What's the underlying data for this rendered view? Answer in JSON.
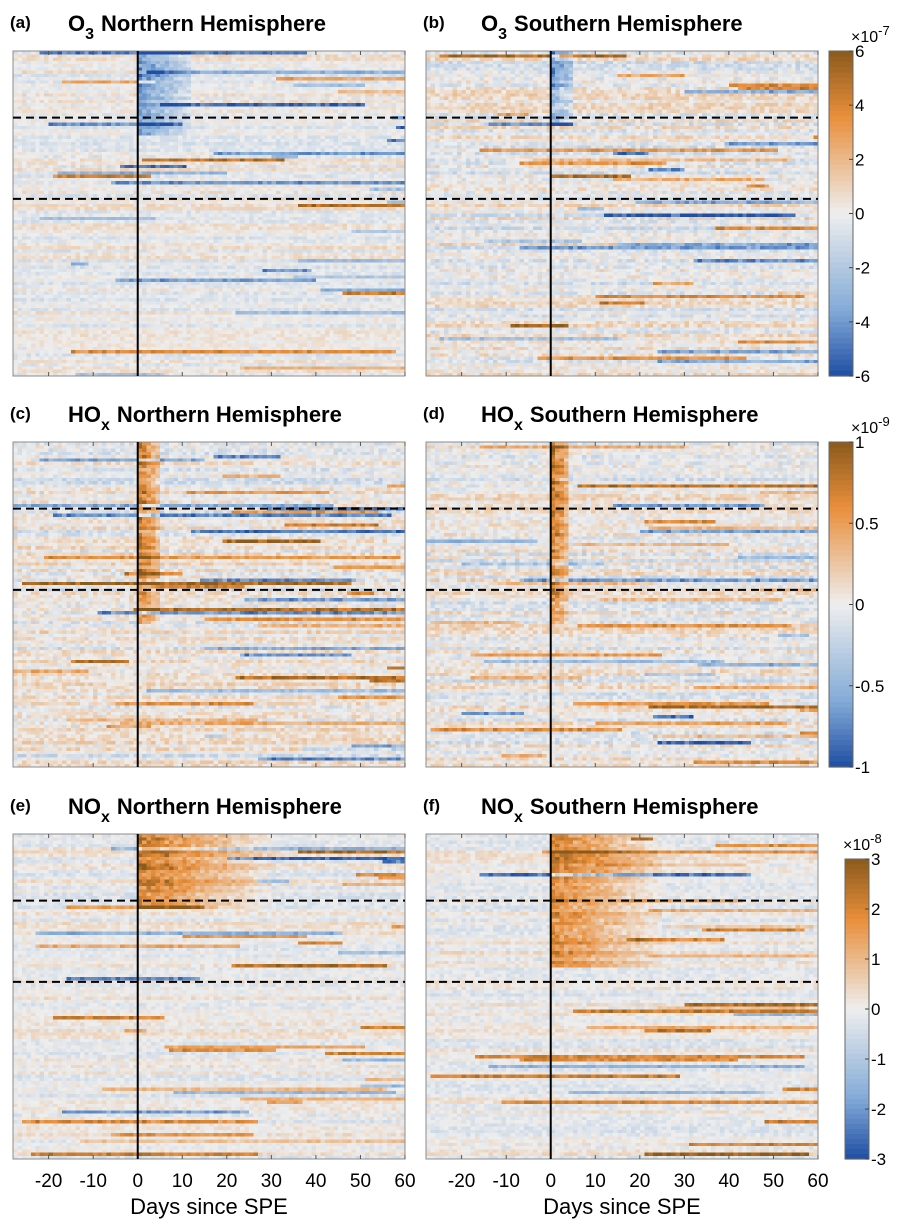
{
  "chart_data": [
    {
      "type": "heatmap",
      "panel_label": "(a)",
      "species": "O",
      "species_sub": "3",
      "title_rest": "Northern Hemisphere",
      "xlabel": "",
      "xlim": [
        -28,
        60
      ],
      "xticks": [],
      "event_day": 0,
      "dashed_row_fractions": [
        0.205,
        0.455
      ],
      "rows": 100,
      "columns": 88,
      "colorbar": {
        "ticks": [
          "6",
          "4",
          "2",
          "0",
          "-2",
          "-4",
          "-6"
        ],
        "exponent_base": "×10",
        "exponent_power": "-7",
        "range": [
          -6,
          6
        ]
      },
      "pattern": {
        "seed": 11,
        "base_amp": 0.12,
        "bright_lines": 0.4,
        "neg_bias": 0.55,
        "post_event_boost": {
          "sign": -1,
          "rows": [
            0,
            0.25
          ],
          "days": 12,
          "amp": 0.9
        }
      }
    },
    {
      "type": "heatmap",
      "panel_label": "(b)",
      "species": "O",
      "species_sub": "3",
      "title_rest": "Southern Hemisphere",
      "xlabel": "",
      "xlim": [
        -28,
        60
      ],
      "xticks": [],
      "event_day": 0,
      "dashed_row_fractions": [
        0.205,
        0.455
      ],
      "rows": 100,
      "columns": 88,
      "colorbar": {
        "ticks": [
          "6",
          "4",
          "2",
          "0",
          "-2",
          "-4",
          "-6"
        ],
        "exponent_base": "×10",
        "exponent_power": "-7",
        "range": [
          -6,
          6
        ]
      },
      "pattern": {
        "seed": 23,
        "base_amp": 0.18,
        "bright_lines": 0.3,
        "neg_bias": 0.5,
        "post_event_boost": {
          "sign": -1,
          "rows": [
            0,
            0.22
          ],
          "days": 5,
          "amp": 0.8
        }
      }
    },
    {
      "type": "heatmap",
      "panel_label": "(c)",
      "species": "HO",
      "species_sub": "x",
      "title_rest": "Northern Hemisphere",
      "xlabel": "",
      "xlim": [
        -28,
        60
      ],
      "xticks": [],
      "event_day": 0,
      "dashed_row_fractions": [
        0.205,
        0.455
      ],
      "rows": 100,
      "columns": 88,
      "colorbar": {
        "ticks": [
          "1",
          "0.5",
          "0",
          "-0.5",
          "-1"
        ],
        "exponent_base": "×10",
        "exponent_power": "-9",
        "range": [
          -1,
          1
        ]
      },
      "pattern": {
        "seed": 37,
        "base_amp": 0.18,
        "bright_lines": 0.35,
        "neg_bias": 0.3,
        "post_event_boost": {
          "sign": 1,
          "rows": [
            0,
            0.55
          ],
          "days": 5,
          "amp": 1.0
        }
      }
    },
    {
      "type": "heatmap",
      "panel_label": "(d)",
      "species": "HO",
      "species_sub": "x",
      "title_rest": "Southern Hemisphere",
      "xlabel": "",
      "xlim": [
        -28,
        60
      ],
      "xticks": [],
      "event_day": 0,
      "dashed_row_fractions": [
        0.205,
        0.455
      ],
      "rows": 100,
      "columns": 88,
      "colorbar": {
        "ticks": [
          "1",
          "0.5",
          "0",
          "-0.5",
          "-1"
        ],
        "exponent_base": "×10",
        "exponent_power": "-9",
        "range": [
          -1,
          1
        ]
      },
      "pattern": {
        "seed": 51,
        "base_amp": 0.18,
        "bright_lines": 0.35,
        "neg_bias": 0.3,
        "post_event_boost": {
          "sign": 1,
          "rows": [
            0,
            0.55
          ],
          "days": 4,
          "amp": 1.0
        }
      }
    },
    {
      "type": "heatmap",
      "panel_label": "(e)",
      "species": "NO",
      "species_sub": "x",
      "title_rest": "Northern Hemisphere",
      "xlabel": "Days since SPE",
      "xlim": [
        -28,
        60
      ],
      "xticks": [
        -20,
        -10,
        0,
        10,
        20,
        30,
        40,
        50,
        60
      ],
      "event_day": 0,
      "dashed_row_fractions": [
        0.205,
        0.455
      ],
      "rows": 100,
      "columns": 88,
      "colorbar": {
        "ticks": [
          "3",
          "2",
          "1",
          "0",
          "-1",
          "-2",
          "-3"
        ],
        "exponent_base": "×10",
        "exponent_power": "-8",
        "range": [
          -3,
          3
        ]
      },
      "pattern": {
        "seed": 67,
        "base_amp": 0.12,
        "bright_lines": 0.35,
        "neg_bias": 0.25,
        "post_event_boost": {
          "sign": 1,
          "rows": [
            0,
            0.22
          ],
          "days": 30,
          "amp": 1.0
        }
      }
    },
    {
      "type": "heatmap",
      "panel_label": "(f)",
      "species": "NO",
      "species_sub": "x",
      "title_rest": "Southern Hemisphere",
      "xlabel": "Days since SPE",
      "xlim": [
        -28,
        60
      ],
      "xticks": [
        -20,
        -10,
        0,
        10,
        20,
        30,
        40,
        50,
        60
      ],
      "event_day": 0,
      "dashed_row_fractions": [
        0.205,
        0.455
      ],
      "rows": 100,
      "columns": 88,
      "colorbar": {
        "ticks": [
          "3",
          "2",
          "1",
          "0",
          "-1",
          "-2",
          "-3"
        ],
        "exponent_base": "×10",
        "exponent_power": "-8",
        "range": [
          -3,
          3
        ]
      },
      "pattern": {
        "seed": 83,
        "base_amp": 0.12,
        "bright_lines": 0.3,
        "neg_bias": 0.25,
        "post_event_boost": {
          "sign": 1,
          "rows": [
            0,
            0.4
          ],
          "days": 25,
          "amp": 0.95
        }
      }
    }
  ],
  "colors": {
    "negative": "#1f4ea3",
    "neutral": "#eeeeee",
    "positive": "#8a5a1c",
    "event_line": "#000000",
    "dashed_line": "#000000"
  }
}
